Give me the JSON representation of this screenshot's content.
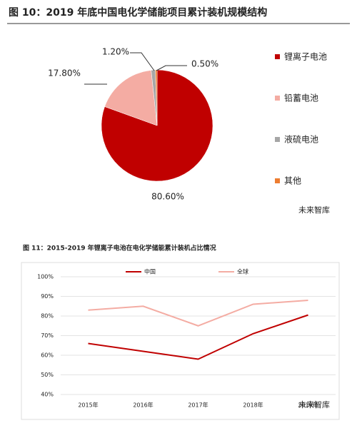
{
  "chart_data": [
    {
      "type": "pie",
      "title": "图 10：2019 年底中国电化学储能项目累计装机规模结构",
      "categories": [
        "锂离子电池",
        "铅蓄电池",
        "液硫电池",
        "其他"
      ],
      "values": [
        80.6,
        17.8,
        1.2,
        0.5
      ],
      "value_labels": [
        "80.60%",
        "17.80%",
        "1.20%",
        "0.50%"
      ],
      "colors": [
        "#c00000",
        "#f4aca3",
        "#a6a6a6",
        "#ed7d31"
      ],
      "legend": "right",
      "watermark": "未来智库"
    },
    {
      "type": "line",
      "title": "图 11：2015-2019 年锂离子电池在电化学储能累计装机占比情况",
      "categories": [
        "2015年",
        "2016年",
        "2017年",
        "2018年",
        "2019年"
      ],
      "series": [
        {
          "name": "中国",
          "color": "#c00000",
          "values": [
            66,
            62,
            58,
            71,
            80.5
          ]
        },
        {
          "name": "全球",
          "color": "#f4aca3",
          "values": [
            83,
            85,
            75,
            86,
            88
          ]
        }
      ],
      "ylim": [
        40,
        100
      ],
      "yticks": [
        {
          "value": 40,
          "label": "40%"
        },
        {
          "value": 50,
          "label": "50%"
        },
        {
          "value": 60,
          "label": "60%"
        },
        {
          "value": 70,
          "label": "70%"
        },
        {
          "value": 80,
          "label": "80%"
        },
        {
          "value": 90,
          "label": "90%"
        },
        {
          "value": 100,
          "label": "100%"
        }
      ],
      "grid": true,
      "legend": "top",
      "watermark": "未来智库"
    }
  ]
}
